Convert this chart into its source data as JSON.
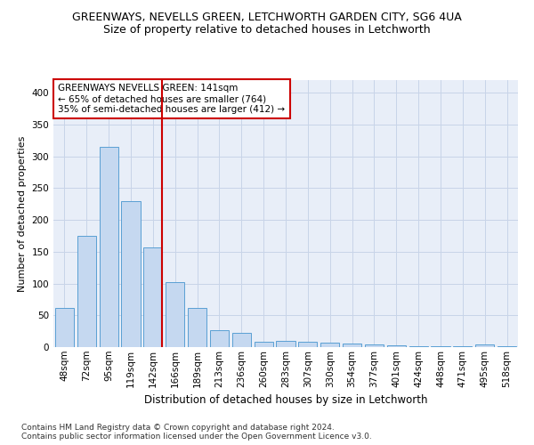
{
  "title": "GREENWAYS, NEVELLS GREEN, LETCHWORTH GARDEN CITY, SG6 4UA",
  "subtitle": "Size of property relative to detached houses in Letchworth",
  "xlabel": "Distribution of detached houses by size in Letchworth",
  "ylabel": "Number of detached properties",
  "categories": [
    "48sqm",
    "72sqm",
    "95sqm",
    "119sqm",
    "142sqm",
    "166sqm",
    "189sqm",
    "213sqm",
    "236sqm",
    "260sqm",
    "283sqm",
    "307sqm",
    "330sqm",
    "354sqm",
    "377sqm",
    "401sqm",
    "424sqm",
    "448sqm",
    "471sqm",
    "495sqm",
    "518sqm"
  ],
  "values": [
    62,
    175,
    315,
    230,
    157,
    102,
    62,
    27,
    22,
    9,
    10,
    9,
    7,
    6,
    4,
    3,
    2,
    1,
    1,
    4,
    2
  ],
  "bar_color": "#c5d8f0",
  "bar_edge_color": "#5a9fd4",
  "highlight_index": 4,
  "highlight_color": "#cc0000",
  "annotation_text": "GREENWAYS NEVELLS GREEN: 141sqm\n← 65% of detached houses are smaller (764)\n35% of semi-detached houses are larger (412) →",
  "annotation_box_color": "#ffffff",
  "annotation_box_edge": "#cc0000",
  "ylim": [
    0,
    420
  ],
  "yticks": [
    0,
    50,
    100,
    150,
    200,
    250,
    300,
    350,
    400
  ],
  "grid_color": "#c8d4e8",
  "background_color": "#e8eef8",
  "footer": "Contains HM Land Registry data © Crown copyright and database right 2024.\nContains public sector information licensed under the Open Government Licence v3.0.",
  "title_fontsize": 9,
  "subtitle_fontsize": 9,
  "xlabel_fontsize": 8.5,
  "ylabel_fontsize": 8,
  "tick_fontsize": 7.5,
  "annotation_fontsize": 7.5,
  "footer_fontsize": 6.5
}
